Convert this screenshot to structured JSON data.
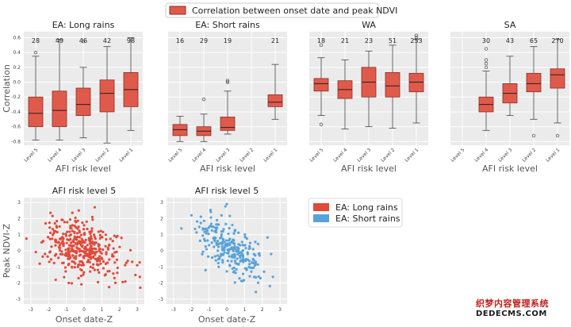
{
  "colors": {
    "box_fill": "#e05a4b",
    "box_edge": "#8a2f27",
    "median": "#222222",
    "panel_bg": "#ebebeb",
    "grid": "#ffffff",
    "long_rains": "#e04a3a",
    "short_rains": "#57a3d9"
  },
  "top_legend_label": "Correlation between onset date and peak NDVI",
  "bottom_legend": [
    {
      "label": "EA: Long rains",
      "color_key": "long_rains"
    },
    {
      "label": "EA: Short rains",
      "color_key": "short_rains"
    }
  ],
  "watermark": {
    "line1": "织梦内容管理系统",
    "line2": "DEDECMS.COM"
  },
  "chart_data": [
    {
      "type": "box",
      "title": "EA: Long rains",
      "ylabel": "Correlation",
      "xlabel": "AFI risk level",
      "ylim": [
        -0.85,
        0.68
      ],
      "yticks": [
        -0.8,
        -0.6,
        -0.4,
        -0.2,
        0.0,
        0.2,
        0.4,
        0.6
      ],
      "categories": [
        "Level 5",
        "Level 4",
        "Level 3",
        "Level 2",
        "Level 1"
      ],
      "counts": [
        "28",
        "49",
        "46",
        "42",
        "98"
      ],
      "boxes": [
        {
          "whislo": -0.78,
          "q1": -0.6,
          "med": -0.42,
          "q3": -0.2,
          "whishi": 0.35,
          "fliers": [
            0.4
          ]
        },
        {
          "whislo": -0.78,
          "q1": -0.6,
          "med": -0.38,
          "q3": -0.12,
          "whishi": 0.58,
          "fliers": []
        },
        {
          "whislo": -0.75,
          "q1": -0.45,
          "med": -0.3,
          "q3": -0.08,
          "whishi": 0.2,
          "fliers": [
            0.55
          ]
        },
        {
          "whislo": -0.82,
          "q1": -0.4,
          "med": -0.15,
          "q3": 0.03,
          "whishi": 0.48,
          "fliers": []
        },
        {
          "whislo": -0.65,
          "q1": -0.33,
          "med": -0.1,
          "q3": 0.13,
          "whishi": 0.6,
          "fliers": []
        }
      ]
    },
    {
      "type": "box",
      "title": "EA: Short rains",
      "ylabel": "",
      "xlabel": "AFI risk level",
      "ylim": [
        -0.85,
        0.68
      ],
      "categories": [
        "Level 5",
        "Level 4",
        "Level 3",
        "Level 2",
        "Level 1"
      ],
      "counts": [
        "16",
        "29",
        "19",
        "",
        "21"
      ],
      "boxes": [
        {
          "whislo": -0.8,
          "q1": -0.72,
          "med": -0.64,
          "q3": -0.57,
          "whishi": -0.46,
          "fliers": []
        },
        {
          "whislo": -0.8,
          "q1": -0.72,
          "med": -0.66,
          "q3": -0.6,
          "whishi": -0.43,
          "fliers": [
            -0.23
          ]
        },
        {
          "whislo": -0.7,
          "q1": -0.65,
          "med": -0.61,
          "q3": -0.47,
          "whishi": -0.12,
          "fliers": [
            0.0,
            0.02
          ]
        },
        null,
        {
          "whislo": -0.5,
          "q1": -0.33,
          "med": -0.27,
          "q3": -0.17,
          "whishi": 0.24,
          "fliers": []
        }
      ]
    },
    {
      "type": "box",
      "title": "WA",
      "ylabel": "",
      "xlabel": "AFI risk level",
      "ylim": [
        -0.85,
        0.68
      ],
      "categories": [
        "Level 5",
        "Level 4",
        "Level 3",
        "Level 2",
        "Level 1"
      ],
      "counts": [
        "18",
        "21",
        "23",
        "51",
        "253"
      ],
      "boxes": [
        {
          "whislo": -0.45,
          "q1": -0.12,
          "med": -0.02,
          "q3": 0.05,
          "whishi": 0.33,
          "fliers": [
            0.5,
            -0.57
          ]
        },
        {
          "whislo": -0.63,
          "q1": -0.22,
          "med": -0.1,
          "q3": 0.02,
          "whishi": 0.3,
          "fliers": []
        },
        {
          "whislo": -0.6,
          "q1": -0.2,
          "med": 0.0,
          "q3": 0.2,
          "whishi": 0.42,
          "fliers": []
        },
        {
          "whislo": -0.62,
          "q1": -0.2,
          "med": -0.05,
          "q3": 0.13,
          "whishi": 0.5,
          "fliers": []
        },
        {
          "whislo": -0.55,
          "q1": -0.13,
          "med": 0.0,
          "q3": 0.12,
          "whishi": 0.58,
          "fliers": [
            0.6,
            0.63
          ]
        }
      ]
    },
    {
      "type": "box",
      "title": "SA",
      "ylabel": "",
      "xlabel": "AFI risk level",
      "ylim": [
        -0.85,
        0.68
      ],
      "categories": [
        "Level 5",
        "Level 4",
        "Level 3",
        "Level 2",
        "Level 1"
      ],
      "counts": [
        "",
        "30",
        "43",
        "65",
        "270"
      ],
      "boxes": [
        null,
        {
          "whislo": -0.65,
          "q1": -0.4,
          "med": -0.3,
          "q3": -0.2,
          "whishi": 0.15,
          "fliers": [
            0.45,
            0.3,
            0.25,
            0.2
          ]
        },
        {
          "whislo": -0.45,
          "q1": -0.28,
          "med": -0.15,
          "q3": -0.02,
          "whishi": 0.35,
          "fliers": []
        },
        {
          "whislo": -0.5,
          "q1": -0.13,
          "med": -0.02,
          "q3": 0.12,
          "whishi": 0.48,
          "fliers": [
            -0.72
          ]
        },
        {
          "whislo": -0.55,
          "q1": -0.08,
          "med": 0.1,
          "q3": 0.18,
          "whishi": 0.58,
          "fliers": [
            -0.72
          ]
        }
      ]
    },
    {
      "type": "scatter",
      "title": "AFI risk level 5",
      "xlabel": "Onset date-Z",
      "ylabel": "Peak NDVI-Z",
      "series_name": "EA: Long rains",
      "color_key": "long_rains",
      "xlim": [
        -3.4,
        3.4
      ],
      "ylim": [
        -3.3,
        3.3
      ],
      "xticks": [
        -3,
        -2,
        -1,
        0,
        1,
        2,
        3
      ],
      "yticks": [
        -3,
        -2,
        -1,
        0,
        1,
        2,
        3
      ],
      "cloud": {
        "n": 380,
        "x_mean": -0.1,
        "x_sd": 1.05,
        "y_mean": 0.15,
        "y_sd": 0.85,
        "slope": -0.35,
        "seed": 7
      },
      "points": [
        [
          0.6,
          2.7
        ],
        [
          -0.3,
          2.5
        ],
        [
          -1.6,
          -1.8
        ],
        [
          3.0,
          -0.9
        ],
        [
          2.9,
          -1.5
        ],
        [
          -2.5,
          -0.8
        ]
      ]
    },
    {
      "type": "scatter",
      "title": "AFI risk level 5",
      "xlabel": "Onset date-Z",
      "ylabel": "",
      "series_name": "EA: Short rains",
      "color_key": "short_rains",
      "xlim": [
        -3.4,
        3.4
      ],
      "ylim": [
        -3.3,
        3.3
      ],
      "xticks": [
        -3,
        -2,
        -1,
        0,
        1,
        2,
        3
      ],
      "yticks": [
        -3,
        -2,
        -1,
        0,
        1,
        2,
        3
      ],
      "cloud": {
        "n": 260,
        "x_mean": 0.2,
        "x_sd": 0.95,
        "y_mean": 0.1,
        "y_sd": 0.75,
        "slope": -0.6,
        "seed": 13
      },
      "points": [
        [
          0.0,
          2.9
        ],
        [
          -0.3,
          2.2
        ],
        [
          1.9,
          -1.7
        ],
        [
          1.8,
          -1.6
        ],
        [
          2.1,
          -1.3
        ],
        [
          -1.2,
          -1.2
        ],
        [
          2.5,
          -0.2
        ]
      ]
    }
  ]
}
